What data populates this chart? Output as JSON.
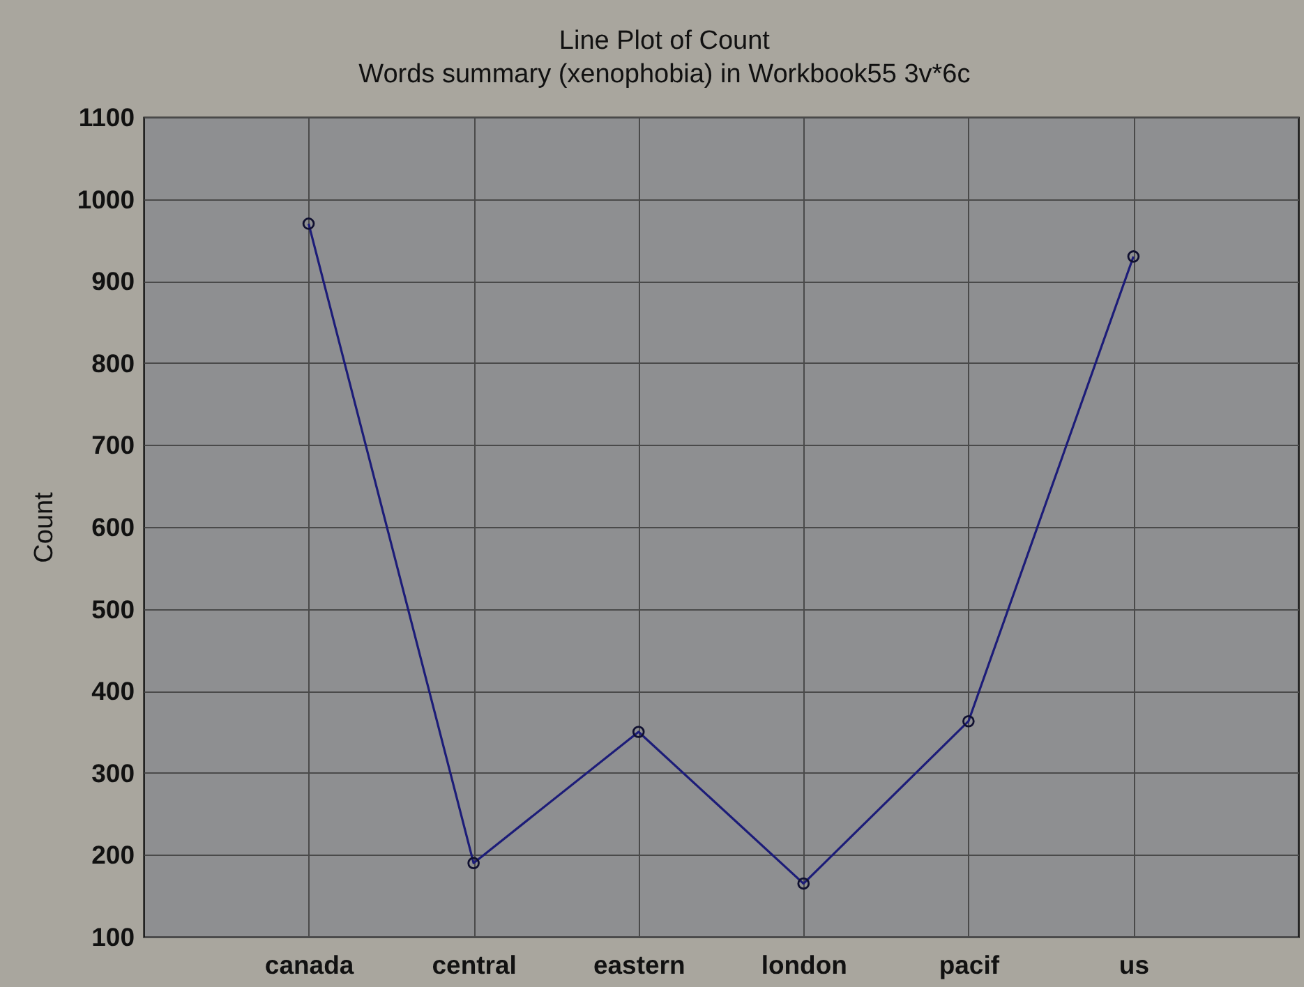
{
  "chart_data": {
    "type": "line",
    "title": "Line Plot of Count",
    "subtitle": "Words summary (xenophobia) in Workbook55 3v*6c",
    "ylabel": "Count",
    "categories": [
      "canada",
      "central",
      "eastern",
      "london",
      "pacif",
      "us"
    ],
    "series": [
      {
        "color": "#1c1c78",
        "values": [
          970,
          190,
          350,
          165,
          363,
          930
        ]
      }
    ],
    "ylim": [
      100,
      1100
    ],
    "yticks": [
      100,
      200,
      300,
      400,
      500,
      600,
      700,
      800,
      900,
      1000,
      1100
    ],
    "grid": true,
    "marker": "circle",
    "line_style": "solid"
  }
}
